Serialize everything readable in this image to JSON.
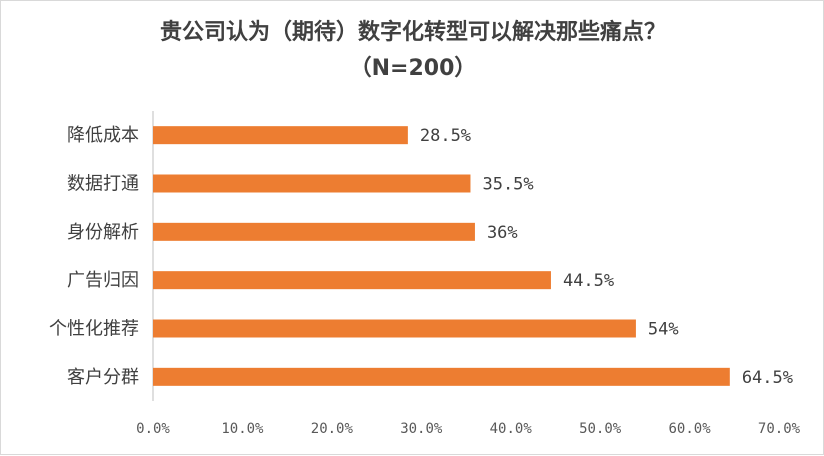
{
  "chart_data": {
    "type": "bar",
    "orientation": "horizontal",
    "title": "贵公司认为（期待）数字化转型可以解决那些痛点？",
    "subtitle": "（N=200）",
    "categories": [
      "降低成本",
      "数据打通",
      "身份解析",
      "广告归因",
      "个性化推荐",
      "客户分群"
    ],
    "values": [
      28.5,
      35.5,
      36,
      44.5,
      54,
      64.5
    ],
    "value_labels": [
      "28.5%",
      "35.5%",
      "36%",
      "44.5%",
      "54%",
      "64.5%"
    ],
    "xlim": [
      0,
      70
    ],
    "xticks": [
      0,
      10,
      20,
      30,
      40,
      50,
      60,
      70
    ],
    "xtick_labels": [
      "0.0%",
      "10.0%",
      "20.0%",
      "30.0%",
      "40.0%",
      "50.0%",
      "60.0%",
      "70.0%"
    ],
    "grid": false,
    "legend": "none",
    "bar_color": "#ED7D31",
    "axis_color": "#bfbfbf"
  }
}
